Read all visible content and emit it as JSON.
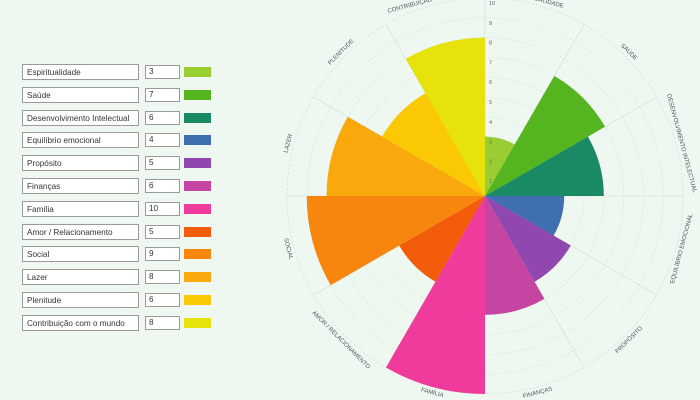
{
  "areas": [
    {
      "name": "Espiritualidade",
      "value": 3,
      "color": "#9acd32"
    },
    {
      "name": "Saúde",
      "value": 7,
      "color": "#55b51f"
    },
    {
      "name": "Desenvolvimento Intelectual",
      "value": 6,
      "color": "#1a8a64"
    },
    {
      "name": "Equilíbrio emocional",
      "value": 4,
      "color": "#3f6fb0"
    },
    {
      "name": "Propósito",
      "value": 5,
      "color": "#9048b0"
    },
    {
      "name": "Finanças",
      "value": 6,
      "color": "#c645a2"
    },
    {
      "name": "Família",
      "value": 10,
      "color": "#ef3b9b"
    },
    {
      "name": "Amor / Relacionamento",
      "value": 5,
      "color": "#f25c0a"
    },
    {
      "name": "Social",
      "value": 9,
      "color": "#f7860f"
    },
    {
      "name": "Lazer",
      "value": 8,
      "color": "#f9a90c"
    },
    {
      "name": "Plenitude",
      "value": 6,
      "color": "#fac903"
    },
    {
      "name": "Contribuição com o mundo",
      "value": 8,
      "color": "#e6e20a"
    }
  ],
  "wheel": {
    "max": 10,
    "ring_labels": [
      "1",
      "2",
      "3",
      "4",
      "5",
      "6",
      "7",
      "8",
      "9",
      "10"
    ],
    "sector_labels": [
      "ESPIRITUALIDADE",
      "SAÚDE",
      "DESENVOLVIMENTO INTELECTUAL",
      "EQUILÍBRIO EMOCIONAL",
      "PROPÓSITO",
      "FINANÇAS",
      "FAMÍLIA",
      "AMOR / RELACIONAMENTO",
      "SOCIAL",
      "LAZER",
      "PLENITUDE",
      "CONTRIBUIÇÃO COM O MUNDO"
    ]
  }
}
